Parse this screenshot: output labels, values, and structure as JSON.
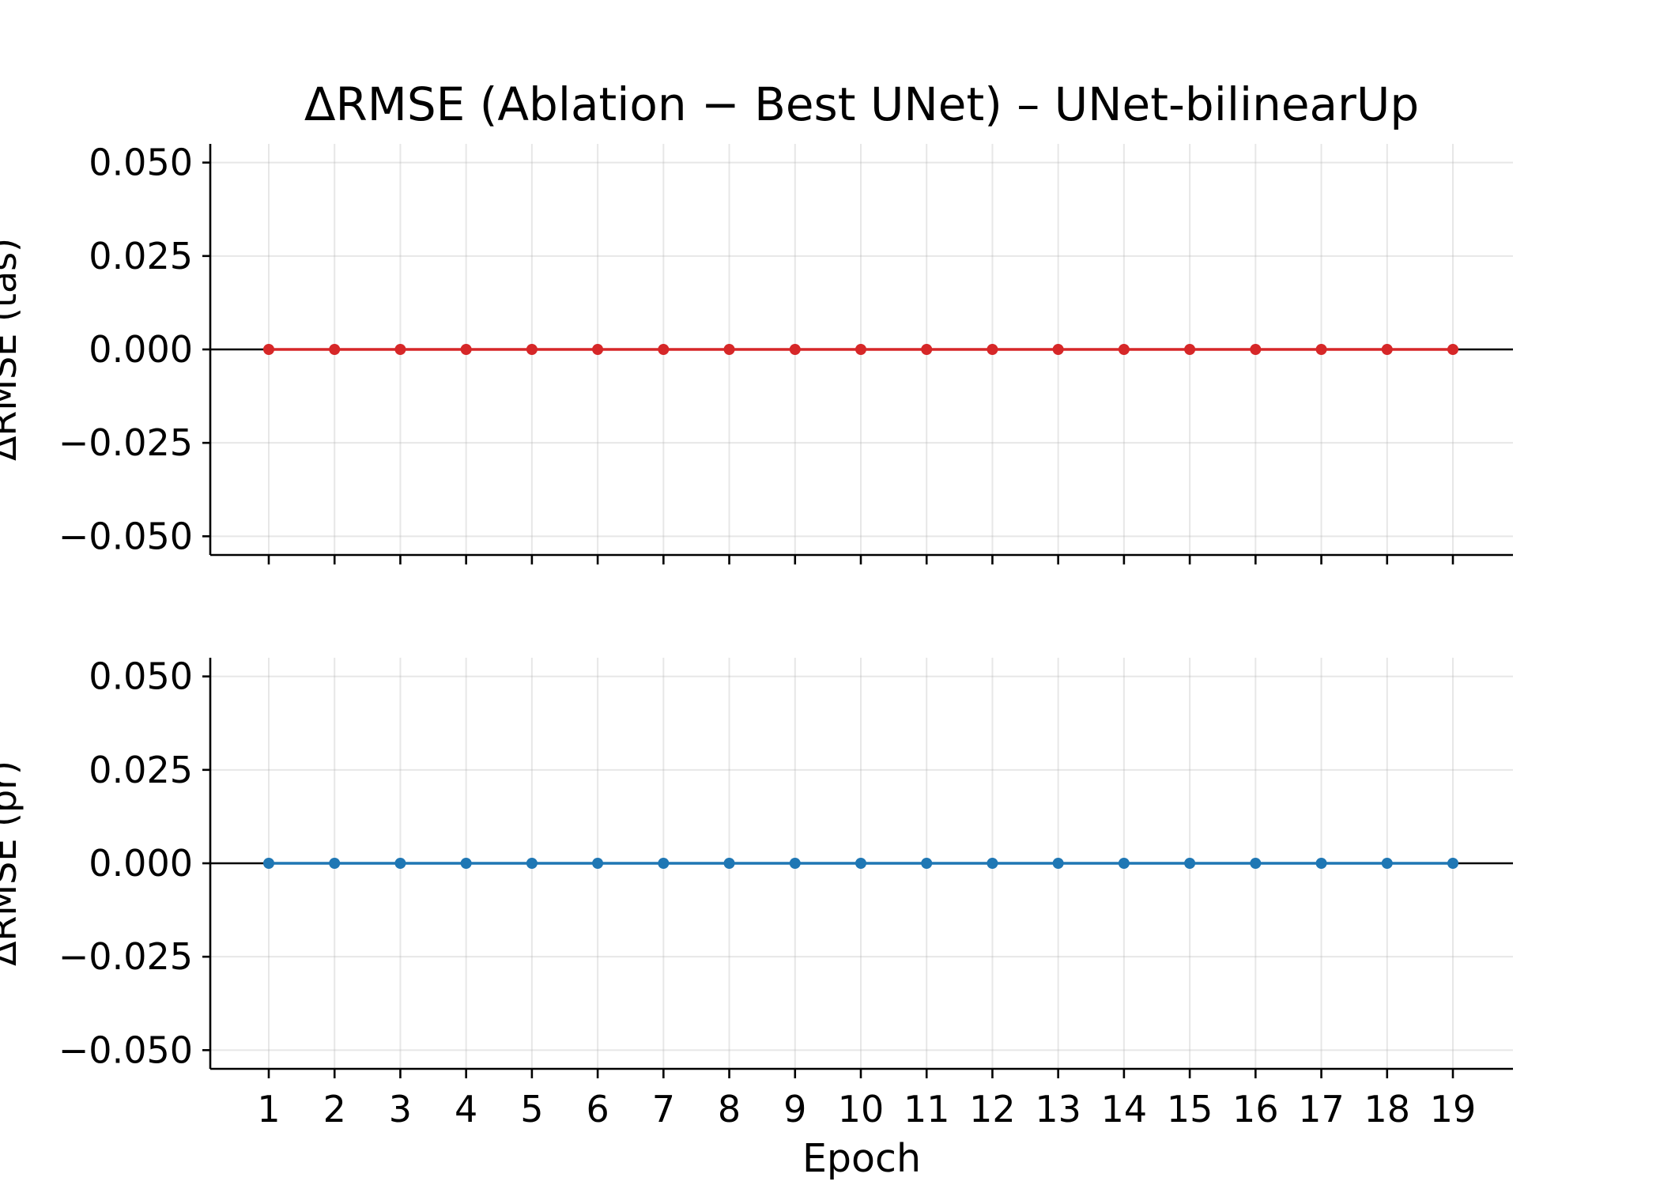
{
  "chart_data": {
    "type": "line",
    "title": "ΔRMSE (Ablation − Best UNet) – UNet-bilinearUp",
    "xlabel": "Epoch",
    "x": [
      1,
      2,
      3,
      4,
      5,
      6,
      7,
      8,
      9,
      10,
      11,
      12,
      13,
      14,
      15,
      16,
      17,
      18,
      19
    ],
    "xtick_labels": [
      "1",
      "2",
      "3",
      "4",
      "5",
      "6",
      "7",
      "8",
      "9",
      "10",
      "11",
      "12",
      "13",
      "14",
      "15",
      "16",
      "17",
      "18",
      "19"
    ],
    "grid": true,
    "shared_x": true,
    "panels": [
      {
        "ylabel": "ΔRMSE (tas)",
        "ylim": [
          -0.055,
          0.055
        ],
        "yticks": [
          0.05,
          0.025,
          0.0,
          -0.025,
          -0.05
        ],
        "ytick_labels": [
          "0.050",
          "0.025",
          "0.000",
          "−0.025",
          "−0.050"
        ],
        "zero_line": true,
        "series": [
          {
            "color": "#d62728",
            "values": [
              0,
              0,
              0,
              0,
              0,
              0,
              0,
              0,
              0,
              0,
              0,
              0,
              0,
              0,
              0,
              0,
              0,
              0,
              0
            ]
          }
        ]
      },
      {
        "ylabel": "ΔRMSE (pr)",
        "ylim": [
          -0.055,
          0.055
        ],
        "yticks": [
          0.05,
          0.025,
          0.0,
          -0.025,
          -0.05
        ],
        "ytick_labels": [
          "0.050",
          "0.025",
          "0.000",
          "−0.025",
          "−0.050"
        ],
        "zero_line": true,
        "series": [
          {
            "color": "#1f77b4",
            "values": [
              0,
              0,
              0,
              0,
              0,
              0,
              0,
              0,
              0,
              0,
              0,
              0,
              0,
              0,
              0,
              0,
              0,
              0,
              0
            ]
          }
        ]
      }
    ]
  }
}
